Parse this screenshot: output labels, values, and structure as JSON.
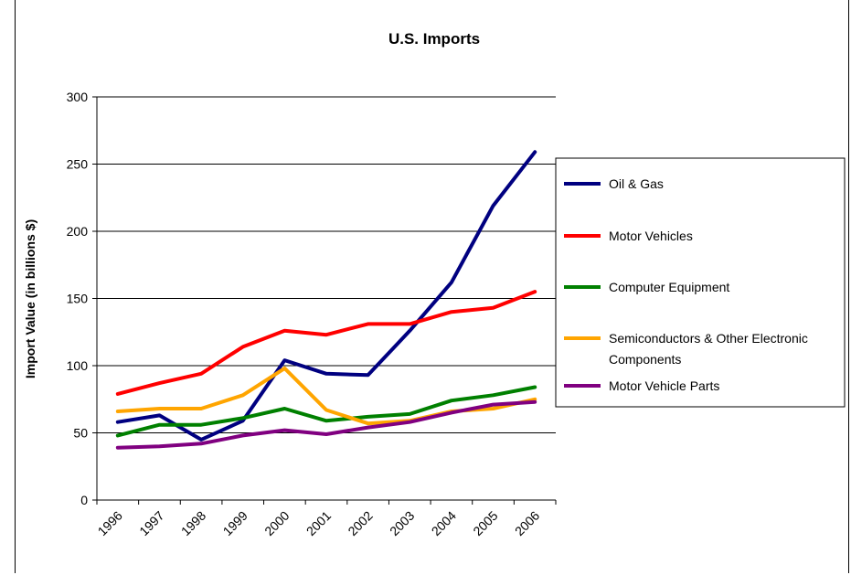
{
  "chart_data": {
    "type": "line",
    "title": "U.S. Imports",
    "xlabel": "",
    "ylabel": "Import Value (in billions $)",
    "categories": [
      "1996",
      "1997",
      "1998",
      "1999",
      "2000",
      "2001",
      "2002",
      "2003",
      "2004",
      "2005",
      "2006"
    ],
    "ylim": [
      0,
      300
    ],
    "yticks": [
      0,
      50,
      100,
      150,
      200,
      250,
      300
    ],
    "grid": true,
    "legend_position": "right",
    "series": [
      {
        "name": "Oil & Gas",
        "color": "#000080",
        "values": [
          58,
          63,
          45,
          59,
          104,
          94,
          93,
          126,
          162,
          219,
          259
        ]
      },
      {
        "name": "Motor Vehicles",
        "color": "#ff0000",
        "values": [
          79,
          87,
          94,
          114,
          126,
          123,
          131,
          131,
          140,
          143,
          155
        ]
      },
      {
        "name": "Computer Equipment",
        "color": "#008000",
        "values": [
          48,
          56,
          56,
          61,
          68,
          59,
          62,
          64,
          74,
          78,
          84
        ]
      },
      {
        "name": "Semiconductors & Other Electronic Components",
        "color": "#ffa500",
        "values": [
          66,
          68,
          68,
          78,
          98,
          67,
          57,
          59,
          66,
          68,
          75
        ]
      },
      {
        "name": "Motor Vehicle Parts",
        "color": "#800080",
        "values": [
          39,
          40,
          42,
          48,
          52,
          49,
          54,
          58,
          65,
          71,
          73
        ]
      }
    ]
  }
}
